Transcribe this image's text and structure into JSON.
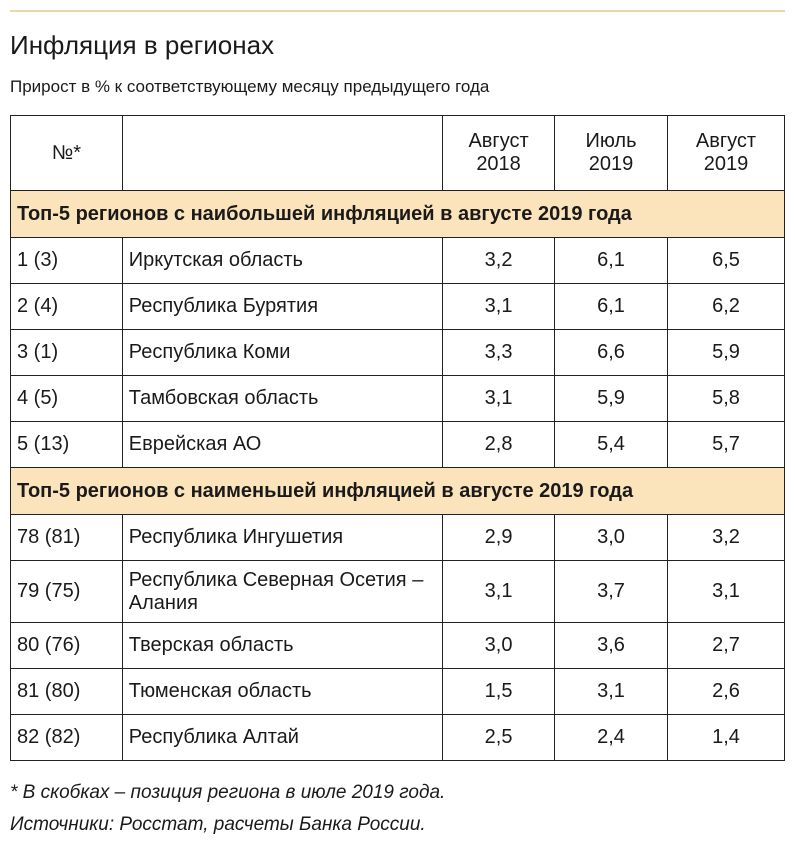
{
  "header": {
    "title": "Инфляция в регионах",
    "subtitle": "Прирост в % к соответствующему месяцу предыдущего года"
  },
  "table": {
    "columns": [
      "№*",
      "Август 2018",
      "Июль 2019",
      "Август 2019"
    ],
    "sections": [
      {
        "heading": "Топ-5 регионов с наибольшей инфляцией в августе 2019 года",
        "rows": [
          [
            "1 (3)",
            "Иркутская область",
            "3,2",
            "6,1",
            "6,5"
          ],
          [
            "2 (4)",
            "Республика Бурятия",
            "3,1",
            "6,1",
            "6,2"
          ],
          [
            "3 (1)",
            "Республика Коми",
            "3,3",
            "6,6",
            "5,9"
          ],
          [
            "4 (5)",
            "Тамбовская область",
            "3,1",
            "5,9",
            "5,8"
          ],
          [
            "5 (13)",
            "Еврейская АО",
            "2,8",
            "5,4",
            "5,7"
          ]
        ]
      },
      {
        "heading": "Топ-5 регионов с наименьшей инфляцией в августе 2019 года",
        "rows": [
          [
            "78 (81)",
            "Республика Ингушетия",
            "2,9",
            "3,0",
            "3,2"
          ],
          [
            "79 (75)",
            "Республика Северная Осетия – Алания",
            "3,1",
            "3,7",
            "3,1"
          ],
          [
            "80 (76)",
            "Тверская область",
            "3,0",
            "3,6",
            "2,7"
          ],
          [
            "81 (80)",
            "Тюменская область",
            "1,5",
            "3,1",
            "2,6"
          ],
          [
            "82 (82)",
            "Республика Алтай",
            "2,5",
            "2,4",
            "1,4"
          ]
        ]
      }
    ]
  },
  "footnotes": [
    "* В скобках – позиция региона в июле 2019 года.",
    "Источники: Росстат, расчеты Банка России."
  ]
}
